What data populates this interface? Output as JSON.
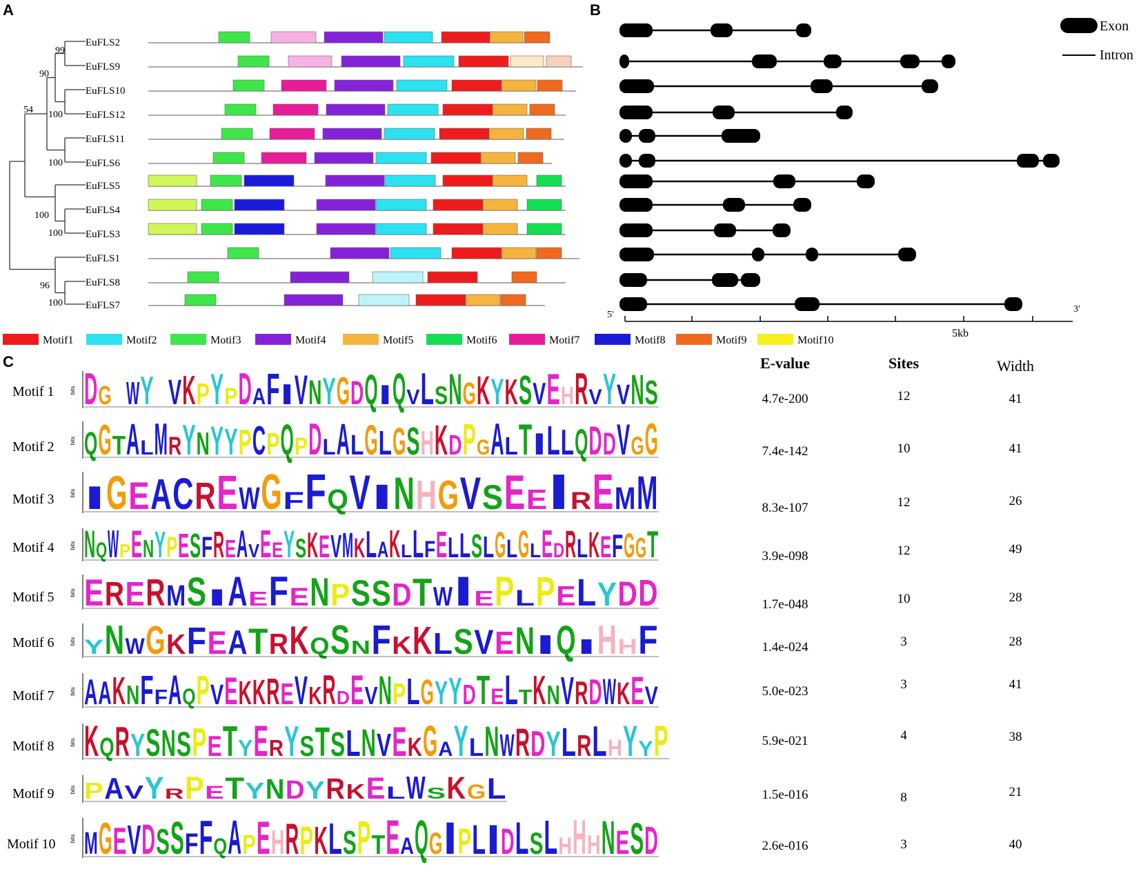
{
  "panel_labels": [
    "A",
    "B",
    "C"
  ],
  "panelA": {
    "genes": [
      "EuFLS2",
      "EuFLS9",
      "EuFLS10",
      "EuFLS12",
      "EuFLS11",
      "EuFLS6",
      "EuFLS5",
      "EuFLS4",
      "EuFLS3",
      "EuFLS1",
      "EuFLS8",
      "EuFLS7"
    ],
    "bootstrap": [
      "99",
      "90",
      "54",
      "100",
      "100",
      "100",
      "100",
      "100",
      "96",
      "100"
    ],
    "motif_colors": {
      "m1": "#ee1c1c",
      "m2": "#2de2f0",
      "m3": "#3fe64a",
      "m4": "#8422d8",
      "m5": "#f6b43e",
      "m6": "#14df52",
      "m7": "#e81c98",
      "m8": "#1a1ad8",
      "m9": "#ef6a1e",
      "m10": "#f6ef1a",
      "m10f": "#d2f55a",
      "m7f": "#f7b2e3",
      "m2f": "#bdf4fa",
      "m5f": "#fbe8c6",
      "m9f": "#f7d1bd"
    }
  },
  "legend": [
    "Motif1",
    "Motif2",
    "Motif3",
    "Motif4",
    "Motif5",
    "Motif6",
    "Motif7",
    "Motif8",
    "Motif9",
    "Motif10"
  ],
  "panelB": {
    "legend_exon": "Exon",
    "legend_intron": "Intron",
    "axis_start": "5'",
    "axis_end": "3'",
    "axis_mid": "5kb"
  },
  "panelC": {
    "headers": {
      "evalue": "E-value",
      "sites": "Sites",
      "width": "Width"
    },
    "rows": [
      {
        "name": "Motif 1",
        "evalue": "4.7e-200",
        "sites": "12",
        "width": "41"
      },
      {
        "name": "Motif 2",
        "evalue": "7.4e-142",
        "sites": "10",
        "width": "41"
      },
      {
        "name": "Motif 3",
        "evalue": "8.3e-107",
        "sites": "12",
        "width": "26"
      },
      {
        "name": "Motif 4",
        "evalue": "3.9e-098",
        "sites": "12",
        "width": "49"
      },
      {
        "name": "Motif 5",
        "evalue": "1.7e-048",
        "sites": "10",
        "width": "28"
      },
      {
        "name": "Motif 6",
        "evalue": "1.4e-024",
        "sites": "3",
        "width": "28"
      },
      {
        "name": "Motif 7",
        "evalue": "5.0e-023",
        "sites": "3",
        "width": "41"
      },
      {
        "name": "Motif 8",
        "evalue": "5.9e-021",
        "sites": "4",
        "width": "38"
      },
      {
        "name": "Motif 9",
        "evalue": "1.5e-016",
        "sites": "8",
        "width": "21"
      },
      {
        "name": "Motif 10",
        "evalue": "2.6e-016",
        "sites": "3",
        "width": "40"
      }
    ],
    "logos": [
      "DG_WY_VKPYPDAFIVNYGDQIQVLSNGKYKSVEHRVYVNS",
      "QGTALMRYNYYPCPQPDLALGLGSHKDPGALTILLQDDVGG",
      "IGEACREWGFFQVINHGVSEEIREMM",
      "NQWPENYPESFREAVEEYSKEVMKLAKLLFELLSLGLGLEDRLKEFGGT",
      "ERERMSIAEFENPSSDTWIEPLPELYDD",
      "YNWGKFEATRKQSNFKKLSVENIQIHHF",
      "AAKNFFAQPVEKKREVKRDEVNPLGYYDTELTKNVRDWKEV",
      "KQRYSNSPETYERYSTSLNVEKGAYLNWRDYLRLHYYP",
      "PAVYRPETYNDYRKELWSKGL",
      "MGEVDSSFFQAPEHRPKLSPTEAQGIPLIDLSLHHHNESD"
    ],
    "logo_axis": [
      "4",
      "3",
      "2",
      "1",
      "0"
    ],
    "logo_unit": "bits",
    "letter_colors": {
      "A": "#1b1bd2",
      "V": "#1b1bd2",
      "I": "#1b1bd2",
      "L": "#1b1bd2",
      "M": "#1b1bd2",
      "F": "#1b1bd2",
      "W": "#1b1bd2",
      "C": "#1b1bd2",
      "K": "#c8102e",
      "R": "#c8102e",
      "D": "#e624c9",
      "E": "#e624c9",
      "N": "#13a318",
      "Q": "#13a318",
      "S": "#13a318",
      "T": "#13a318",
      "G": "#f29b0b",
      "P": "#ecec14",
      "H": "#f6b3bf",
      "Y": "#29c6d4"
    }
  }
}
